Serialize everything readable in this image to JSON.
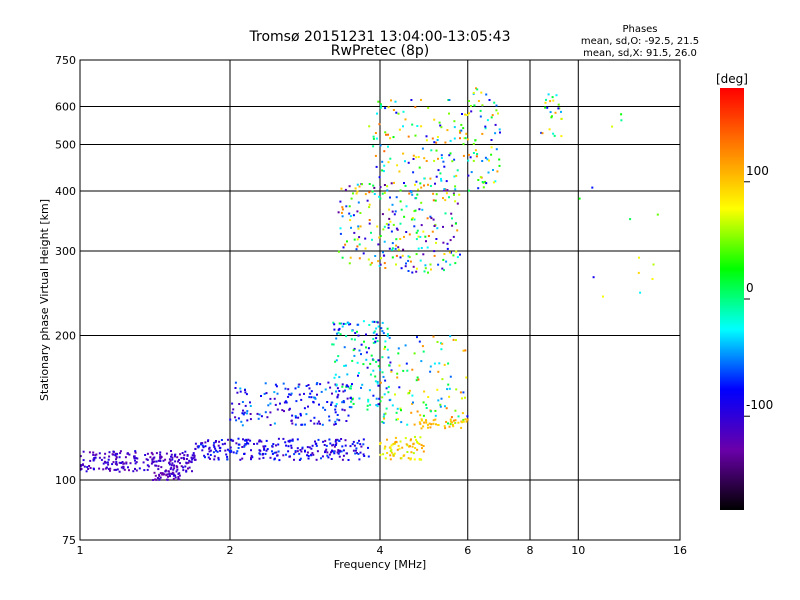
{
  "chart_data": {
    "type": "scatter",
    "title": "Tromsø 20151231 13:04:00-13:05:43",
    "subtitle": "RwPretec (8p)",
    "xlabel": "Frequency [MHz]",
    "ylabel": "Stationary phase Virtual Height [km]",
    "x_scale": "log",
    "y_scale": "log",
    "xlim": [
      1,
      16
    ],
    "ylim": [
      75,
      750
    ],
    "x_ticks": [
      1,
      2,
      4,
      6,
      8,
      10,
      16
    ],
    "x_tick_labels": [
      "1",
      "2",
      "4",
      "6",
      "8",
      "10",
      "16"
    ],
    "y_ticks": [
      75,
      100,
      200,
      300,
      400,
      500,
      600,
      750
    ],
    "y_tick_labels": [
      "75",
      "100",
      "200",
      "300",
      "400",
      "500",
      "600",
      "750"
    ],
    "grid": true,
    "colorbar": {
      "title": "[deg]",
      "range": [
        -180,
        180
      ],
      "ticks": [
        100,
        0,
        -100
      ],
      "tick_labels": [
        "100",
        "0",
        "-100"
      ],
      "colors": [
        "#000000",
        "#6a00aa",
        "#0000ff",
        "#00ffff",
        "#00ff00",
        "#ffff00",
        "#ff8000",
        "#ff0000"
      ]
    },
    "legend_box": {
      "heading": "Phases",
      "line1": "mean, sd,O: -92.5, 21.5",
      "line2": "mean, sd,X:  91.5, 26.0"
    },
    "clusters": [
      {
        "x": [
          1.0,
          1.7
        ],
        "y": [
          104,
          115
        ],
        "phase": [
          -130,
          -90
        ],
        "n": 220
      },
      {
        "x": [
          1.4,
          1.6
        ],
        "y": [
          100,
          104
        ],
        "phase": [
          -130,
          -100
        ],
        "n": 40
      },
      {
        "x": [
          1.7,
          3.8
        ],
        "y": [
          110,
          122
        ],
        "phase": [
          -120,
          -60
        ],
        "n": 260
      },
      {
        "x": [
          2.0,
          3.5
        ],
        "y": [
          130,
          160
        ],
        "phase": [
          -120,
          -40
        ],
        "n": 160
      },
      {
        "x": [
          3.2,
          4.2
        ],
        "y": [
          140,
          215
        ],
        "phase": [
          -100,
          20
        ],
        "n": 150
      },
      {
        "x": [
          3.3,
          5.8
        ],
        "y": [
          270,
          420
        ],
        "phase": [
          -140,
          140
        ],
        "n": 260
      },
      {
        "x": [
          3.8,
          6.0
        ],
        "y": [
          420,
          620
        ],
        "phase": [
          -100,
          140
        ],
        "n": 120
      },
      {
        "x": [
          4.0,
          6.0
        ],
        "y": [
          130,
          200
        ],
        "phase": [
          -80,
          140
        ],
        "n": 110
      },
      {
        "x": [
          4.0,
          4.9
        ],
        "y": [
          110,
          124
        ],
        "phase": [
          60,
          120
        ],
        "n": 70
      },
      {
        "x": [
          4.8,
          6.0
        ],
        "y": [
          128,
          134
        ],
        "phase": [
          90,
          120
        ],
        "n": 40
      },
      {
        "x": [
          6.0,
          7.0
        ],
        "y": [
          400,
          660
        ],
        "phase": [
          -110,
          150
        ],
        "n": 70
      },
      {
        "x": [
          8.4,
          9.3
        ],
        "y": [
          520,
          650
        ],
        "phase": [
          -100,
          120
        ],
        "n": 25
      },
      {
        "x": [
          9.7,
          14.5
        ],
        "y": [
          230,
          620
        ],
        "phase": [
          -100,
          150
        ],
        "n": 14
      }
    ]
  }
}
